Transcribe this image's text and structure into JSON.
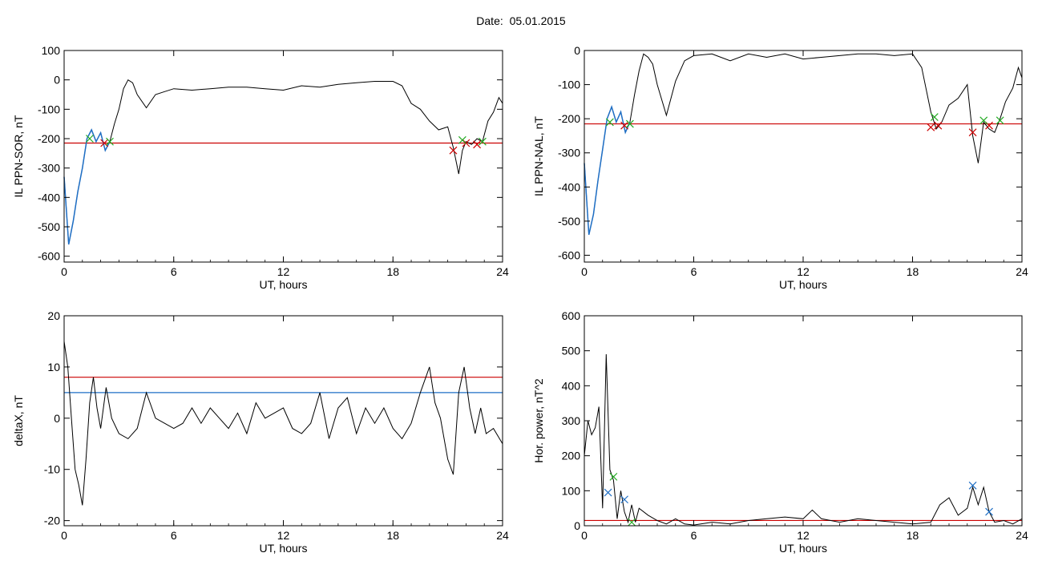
{
  "header": {
    "date_label": "Date:",
    "date_value": "05.01.2015"
  },
  "colors": {
    "trace": "#000000",
    "threshold_red": "#cc0000",
    "threshold_blue": "#1f6fc5",
    "highlight_blue": "#1f6fc5",
    "marker_red": "#cc0000",
    "marker_green": "#22aa22",
    "marker_blue": "#1f6fc5"
  },
  "chart_data": [
    {
      "type": "line",
      "xlabel": "UT, hours",
      "ylabel": "IL PPN-SOR, nT",
      "xlim": [
        0,
        24
      ],
      "ylim": [
        -620,
        100
      ],
      "xticks": [
        0,
        6,
        12,
        18,
        24
      ],
      "yticks": [
        -600,
        -500,
        -400,
        -300,
        -200,
        -100,
        0,
        100
      ],
      "grid": false,
      "x": [
        0,
        0.25,
        0.5,
        0.75,
        1.0,
        1.25,
        1.5,
        1.75,
        2.0,
        2.25,
        2.5,
        2.75,
        3.0,
        3.25,
        3.5,
        3.75,
        4.0,
        4.5,
        5.0,
        5.5,
        6.0,
        7,
        8,
        9,
        10,
        11,
        12,
        13,
        14,
        15,
        16,
        17,
        18,
        18.5,
        19.0,
        19.5,
        20.0,
        20.5,
        21.0,
        21.3,
        21.6,
        21.8,
        22.0,
        22.3,
        22.6,
        22.9,
        23.2,
        23.5,
        23.8,
        24.0
      ],
      "y": [
        -330,
        -560,
        -480,
        -380,
        -300,
        -200,
        -170,
        -210,
        -180,
        -240,
        -210,
        -150,
        -100,
        -30,
        0,
        -10,
        -50,
        -95,
        -50,
        -40,
        -30,
        -35,
        -30,
        -25,
        -25,
        -30,
        -35,
        -20,
        -25,
        -15,
        -10,
        -5,
        -5,
        -20,
        -80,
        -100,
        -140,
        -170,
        -160,
        -230,
        -320,
        -240,
        -210,
        -220,
        -200,
        -210,
        -140,
        -110,
        -60,
        -80
      ],
      "highlight_blue": {
        "x": [
          0,
          0.25,
          0.5,
          0.75,
          1.0,
          1.25,
          1.5,
          1.75,
          2.0,
          2.25,
          2.5
        ],
        "y": [
          -330,
          -560,
          -480,
          -380,
          -300,
          -200,
          -170,
          -210,
          -180,
          -240,
          -210
        ]
      },
      "threshold": {
        "value": -215
      },
      "markers_red": [
        {
          "x": 2.2,
          "y": -215
        },
        {
          "x": 21.3,
          "y": -240
        },
        {
          "x": 22.0,
          "y": -215
        },
        {
          "x": 22.6,
          "y": -220
        }
      ],
      "markers_green": [
        {
          "x": 1.4,
          "y": -200
        },
        {
          "x": 2.5,
          "y": -210
        },
        {
          "x": 21.8,
          "y": -205
        },
        {
          "x": 22.9,
          "y": -210
        }
      ]
    },
    {
      "type": "line",
      "xlabel": "UT, hours",
      "ylabel": "IL PPN-NAL, nT",
      "xlim": [
        0,
        24
      ],
      "ylim": [
        -620,
        0
      ],
      "xticks": [
        0,
        6,
        12,
        18,
        24
      ],
      "yticks": [
        -600,
        -500,
        -400,
        -300,
        -200,
        -100,
        0
      ],
      "grid": false,
      "x": [
        0,
        0.25,
        0.5,
        0.75,
        1.0,
        1.25,
        1.5,
        1.75,
        2.0,
        2.25,
        2.5,
        2.75,
        3.0,
        3.25,
        3.5,
        3.75,
        4.0,
        4.5,
        5.0,
        5.5,
        6.0,
        7,
        8,
        9,
        10,
        11,
        12,
        13,
        14,
        15,
        16,
        17,
        18,
        18.5,
        19.0,
        19.3,
        19.6,
        20.0,
        20.5,
        21.0,
        21.3,
        21.6,
        21.9,
        22.2,
        22.5,
        22.8,
        23.1,
        23.5,
        23.8,
        24.0
      ],
      "y": [
        -330,
        -540,
        -480,
        -380,
        -290,
        -200,
        -165,
        -210,
        -180,
        -240,
        -210,
        -130,
        -60,
        -10,
        -20,
        -40,
        -100,
        -190,
        -90,
        -30,
        -15,
        -10,
        -30,
        -10,
        -20,
        -10,
        -25,
        -20,
        -15,
        -10,
        -10,
        -15,
        -10,
        -50,
        -180,
        -230,
        -210,
        -160,
        -140,
        -100,
        -250,
        -330,
        -210,
        -230,
        -240,
        -200,
        -150,
        -110,
        -50,
        -80
      ],
      "highlight_blue": {
        "x": [
          0,
          0.25,
          0.5,
          0.75,
          1.0,
          1.25,
          1.5,
          1.75,
          2.0,
          2.25,
          2.5
        ],
        "y": [
          -330,
          -540,
          -480,
          -380,
          -290,
          -200,
          -165,
          -210,
          -180,
          -240,
          -210
        ]
      },
      "threshold": {
        "value": -215
      },
      "markers_red": [
        {
          "x": 2.2,
          "y": -220
        },
        {
          "x": 19.0,
          "y": -225
        },
        {
          "x": 19.4,
          "y": -220
        },
        {
          "x": 21.3,
          "y": -240
        },
        {
          "x": 22.2,
          "y": -220
        }
      ],
      "markers_green": [
        {
          "x": 1.4,
          "y": -210
        },
        {
          "x": 2.5,
          "y": -215
        },
        {
          "x": 19.2,
          "y": -195
        },
        {
          "x": 21.9,
          "y": -205
        },
        {
          "x": 22.8,
          "y": -205
        }
      ]
    },
    {
      "type": "line",
      "xlabel": "UT, hours",
      "ylabel": "deltaX, nT",
      "xlim": [
        0,
        24
      ],
      "ylim": [
        -21,
        20
      ],
      "xticks": [
        0,
        6,
        12,
        18,
        24
      ],
      "yticks": [
        -20,
        -10,
        0,
        10,
        20
      ],
      "grid": false,
      "x": [
        0,
        0.2,
        0.4,
        0.6,
        0.8,
        1.0,
        1.2,
        1.4,
        1.6,
        1.8,
        2.0,
        2.3,
        2.6,
        3.0,
        3.5,
        4.0,
        4.5,
        5.0,
        5.5,
        6.0,
        6.5,
        7.0,
        7.5,
        8.0,
        8.5,
        9.0,
        9.5,
        10.0,
        10.5,
        11.0,
        11.5,
        12.0,
        12.5,
        13.0,
        13.5,
        14.0,
        14.5,
        15.0,
        15.5,
        16.0,
        16.5,
        17.0,
        17.5,
        18.0,
        18.5,
        19.0,
        19.5,
        20.0,
        20.3,
        20.6,
        21.0,
        21.3,
        21.6,
        21.9,
        22.2,
        22.5,
        22.8,
        23.1,
        23.5,
        24.0
      ],
      "y": [
        15,
        10,
        0,
        -10,
        -13,
        -17,
        -8,
        3,
        8,
        2,
        -2,
        6,
        0,
        -3,
        -4,
        -2,
        5,
        0,
        -1,
        -2,
        -1,
        2,
        -1,
        2,
        0,
        -2,
        1,
        -3,
        3,
        0,
        1,
        2,
        -2,
        -3,
        -1,
        5,
        -4,
        2,
        4,
        -3,
        2,
        -1,
        2,
        -2,
        -4,
        -1,
        5,
        10,
        3,
        0,
        -8,
        -11,
        5,
        10,
        2,
        -3,
        2,
        -3,
        -2,
        -5
      ],
      "thresholds": [
        {
          "value": 8,
          "color": "red"
        },
        {
          "value": 5,
          "color": "blue"
        }
      ]
    },
    {
      "type": "line",
      "xlabel": "UT, hours",
      "ylabel": "Hor. power, nT^2",
      "xlim": [
        0,
        24
      ],
      "ylim": [
        0,
        600
      ],
      "xticks": [
        0,
        6,
        12,
        18,
        24
      ],
      "yticks": [
        0,
        100,
        200,
        300,
        400,
        500,
        600
      ],
      "grid": false,
      "x": [
        0,
        0.2,
        0.4,
        0.6,
        0.8,
        1.0,
        1.2,
        1.4,
        1.6,
        1.8,
        2.0,
        2.2,
        2.4,
        2.6,
        2.8,
        3.0,
        3.5,
        4.0,
        4.5,
        5.0,
        5.5,
        6.0,
        7.0,
        8.0,
        9.0,
        10.0,
        11.0,
        12.0,
        12.5,
        13.0,
        14.0,
        15.0,
        16.0,
        17.0,
        18.0,
        19.0,
        19.5,
        20.0,
        20.5,
        21.0,
        21.3,
        21.6,
        21.9,
        22.2,
        22.5,
        23.0,
        23.5,
        24.0
      ],
      "y": [
        200,
        300,
        260,
        280,
        340,
        50,
        490,
        160,
        130,
        20,
        100,
        40,
        10,
        60,
        10,
        50,
        30,
        15,
        5,
        20,
        5,
        2,
        10,
        5,
        15,
        20,
        25,
        20,
        45,
        20,
        10,
        20,
        15,
        10,
        5,
        10,
        60,
        80,
        30,
        50,
        110,
        60,
        110,
        40,
        10,
        15,
        5,
        20
      ],
      "threshold": {
        "value": 15
      },
      "markers_blue": [
        {
          "x": 1.3,
          "y": 95
        },
        {
          "x": 2.2,
          "y": 75
        },
        {
          "x": 21.3,
          "y": 115
        },
        {
          "x": 22.2,
          "y": 40
        }
      ],
      "markers_green": [
        {
          "x": 1.6,
          "y": 140
        },
        {
          "x": 2.6,
          "y": 10
        }
      ]
    }
  ]
}
